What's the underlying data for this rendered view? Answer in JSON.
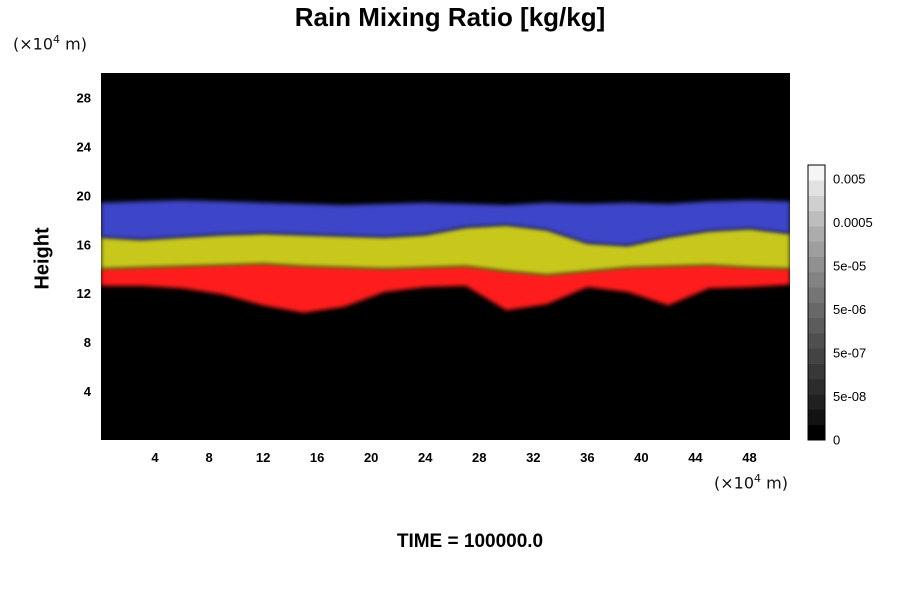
{
  "chart_data": {
    "type": "heatmap",
    "title": "Rain Mixing Ratio [kg/kg]",
    "ylabel": "Height",
    "x_unit": {
      "prefix": "(×10",
      "exp": "4",
      "suffix": " m)"
    },
    "y_unit": {
      "prefix": "(×10",
      "exp": "4",
      "suffix": " m)"
    },
    "xlim": [
      0,
      51
    ],
    "ylim": [
      0,
      30
    ],
    "x_ticks": [
      4,
      8,
      12,
      16,
      20,
      24,
      28,
      32,
      36,
      40,
      44,
      48
    ],
    "y_ticks": [
      4,
      8,
      12,
      16,
      20,
      24,
      28
    ],
    "layers": [
      {
        "color": "#ff1a1a",
        "bottom": [
          12.6,
          12.6,
          12.4,
          11.9,
          11.0,
          10.4,
          10.9,
          12.1,
          12.5,
          12.6,
          10.6,
          11.1,
          12.5,
          12.1,
          11.0,
          12.4,
          12.5,
          12.7
        ],
        "top": [
          14.0,
          14.1,
          14.2,
          14.3,
          14.4,
          14.2,
          14.1,
          14.0,
          14.1,
          14.2,
          13.8,
          13.5,
          13.8,
          14.1,
          14.2,
          14.3,
          14.1,
          14.0
        ]
      },
      {
        "color": "#c8c81e",
        "bottom": [
          14.0,
          14.1,
          14.2,
          14.3,
          14.4,
          14.2,
          14.1,
          14.0,
          14.1,
          14.2,
          13.8,
          13.5,
          13.8,
          14.1,
          14.2,
          14.3,
          14.1,
          14.0
        ],
        "top": [
          16.6,
          16.4,
          16.6,
          16.8,
          16.9,
          16.8,
          16.7,
          16.6,
          16.8,
          17.4,
          17.6,
          17.2,
          16.1,
          15.9,
          16.6,
          17.1,
          17.3,
          16.9
        ]
      },
      {
        "color": "#3d45c8",
        "bottom": [
          16.6,
          16.4,
          16.6,
          16.8,
          16.9,
          16.8,
          16.7,
          16.6,
          16.8,
          17.4,
          17.6,
          17.2,
          16.1,
          15.9,
          16.6,
          17.1,
          17.3,
          16.9
        ],
        "top": [
          19.4,
          19.5,
          19.6,
          19.5,
          19.4,
          19.3,
          19.2,
          19.3,
          19.4,
          19.3,
          19.2,
          19.4,
          19.3,
          19.4,
          19.3,
          19.5,
          19.6,
          19.5
        ]
      }
    ],
    "colorbar": {
      "labels": [
        "0.005",
        "0.0005",
        "5e-05",
        "5e-06",
        "5e-07",
        "5e-08",
        "0"
      ],
      "shades": [
        "#000000",
        "#121212",
        "#202020",
        "#2c2c2c",
        "#383838",
        "#434343",
        "#4f4f4f",
        "#5c5c5c",
        "#686868",
        "#757575",
        "#838383",
        "#909090",
        "#9e9e9e",
        "#acacac",
        "#bdbdbd",
        "#cfcfcf",
        "#e2e2e2",
        "#f5f5f5"
      ]
    },
    "background_color": "#000000"
  },
  "footer": {
    "time_label": "TIME = 100000.0"
  }
}
